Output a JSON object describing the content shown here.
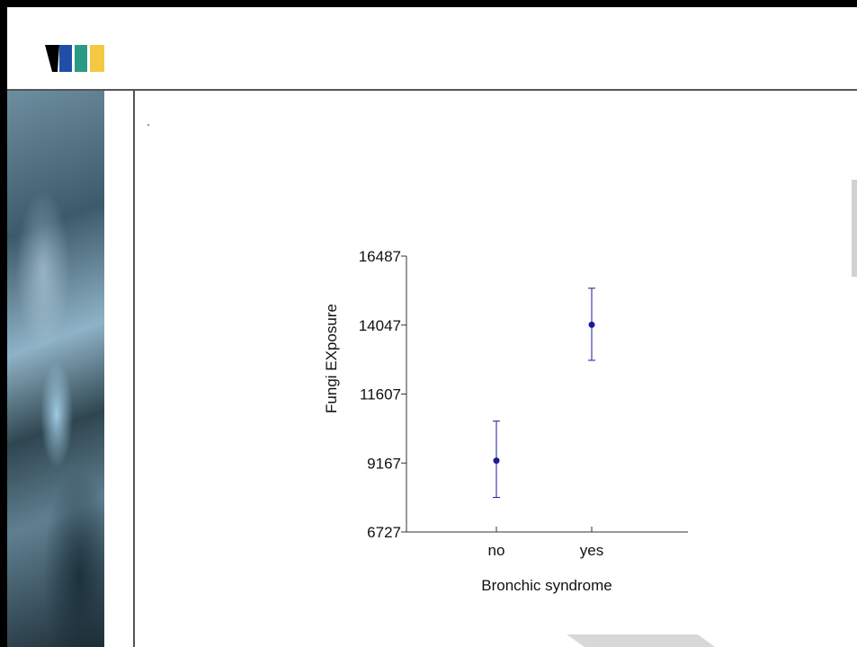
{
  "slide": {
    "footer_text": "",
    "page_number": ""
  },
  "logo": {
    "colors": [
      "#000000",
      "#1f4fa8",
      "#2a9a85",
      "#f4c842"
    ]
  },
  "chart_data": {
    "type": "scatter",
    "title": "",
    "xlabel": "Bronchic syndrome",
    "ylabel": "Fungi EXposure",
    "categories": [
      "no",
      "yes"
    ],
    "y_ticks": [
      6727,
      9167,
      11607,
      14047,
      16487
    ],
    "ylim": [
      6727,
      16487
    ],
    "series": [
      {
        "values": [
          9250,
          14060
        ],
        "error_low": [
          7950,
          12800
        ],
        "error_high": [
          10650,
          15350
        ],
        "color": "#1a1a99"
      }
    ],
    "grid": false
  }
}
